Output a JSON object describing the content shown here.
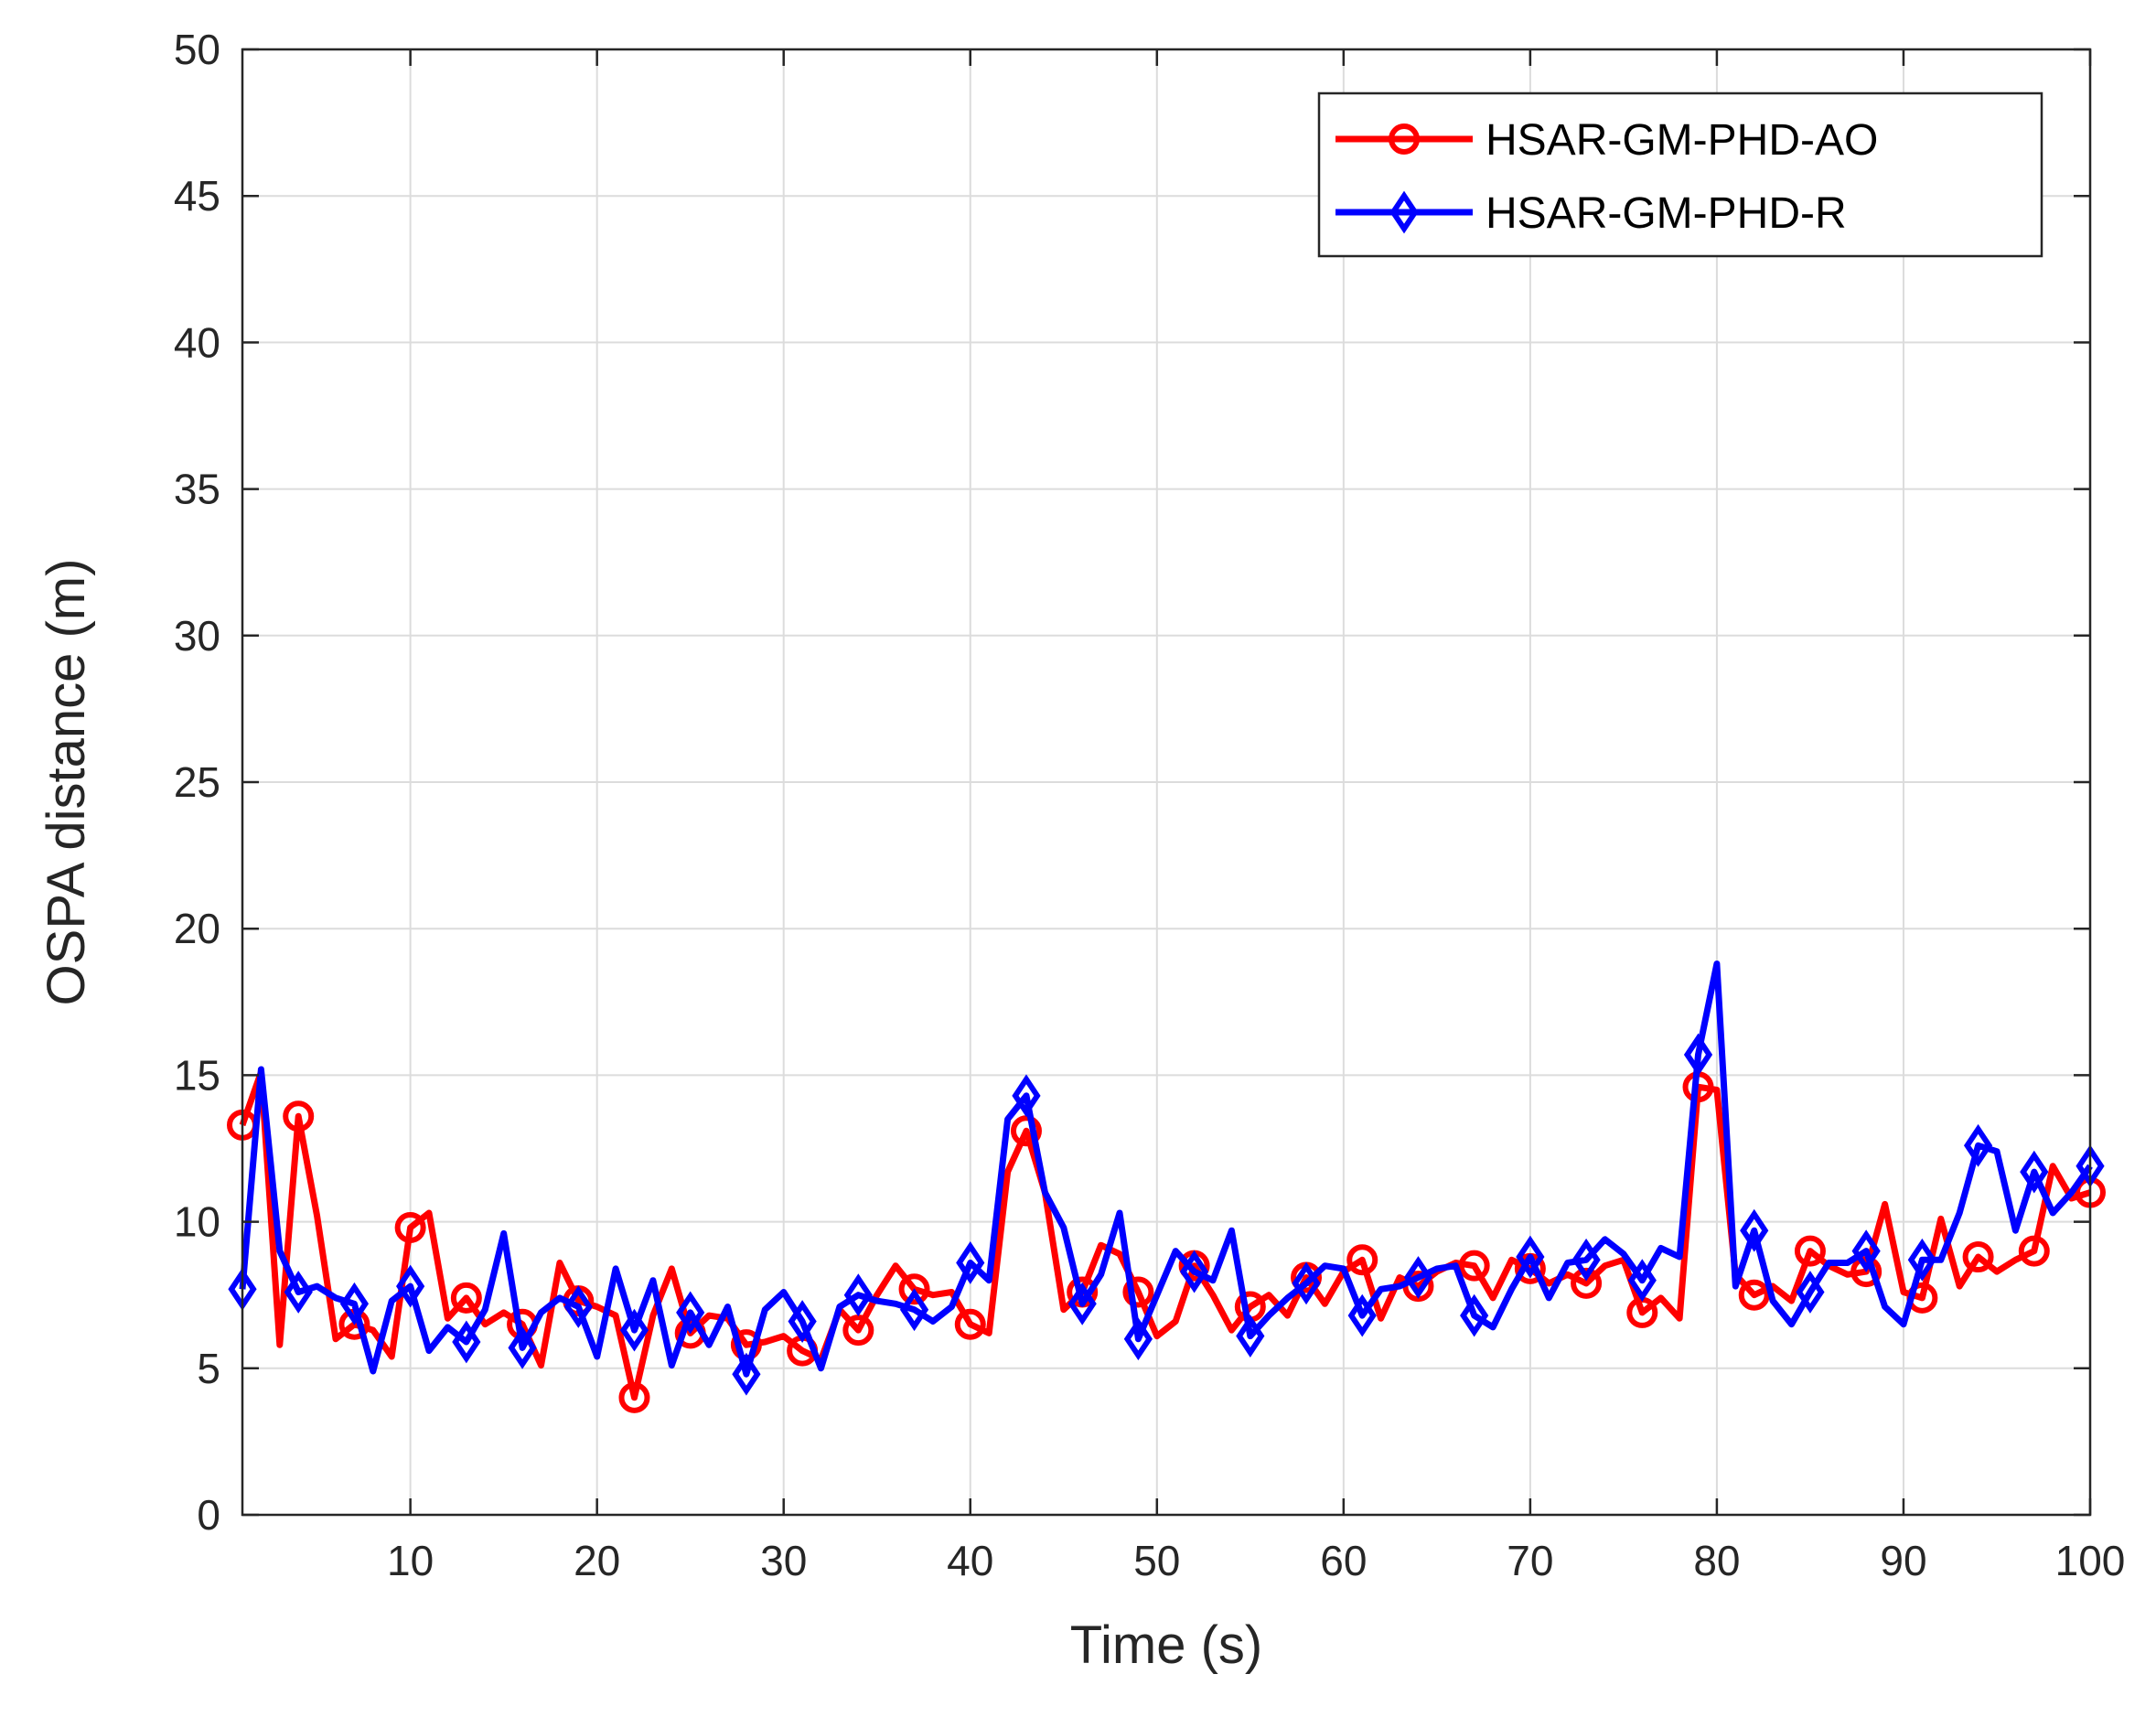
{
  "chart_data": {
    "type": "line",
    "title": "",
    "xlabel": "Time (s)",
    "ylabel": "OSPA distance (m)",
    "xlim": [
      1,
      100
    ],
    "ylim": [
      0,
      50
    ],
    "xticks": [
      10,
      20,
      30,
      40,
      50,
      60,
      70,
      80,
      90,
      100
    ],
    "yticks": [
      0,
      5,
      10,
      15,
      20,
      25,
      30,
      35,
      40,
      45,
      50
    ],
    "grid": true,
    "legend_position": "top-right",
    "marker_every": 3,
    "series": [
      {
        "name": "HSAR-GM-PHD-AO",
        "color": "#ff0000",
        "marker": "circle",
        "values": [
          13.3,
          15.1,
          5.8,
          13.6,
          10.2,
          6.0,
          6.5,
          6.3,
          5.4,
          9.8,
          10.3,
          6.7,
          7.4,
          6.5,
          6.9,
          6.5,
          5.1,
          8.6,
          7.3,
          7.1,
          6.8,
          4.0,
          6.8,
          8.4,
          6.2,
          6.8,
          6.7,
          5.8,
          5.9,
          6.1,
          5.6,
          5.3,
          7.0,
          6.3,
          7.5,
          8.5,
          7.7,
          7.5,
          7.6,
          6.5,
          6.2,
          11.7,
          13.1,
          11.0,
          7.0,
          7.6,
          9.2,
          8.9,
          7.6,
          6.1,
          6.6,
          8.5,
          7.5,
          6.3,
          7.1,
          7.5,
          6.8,
          8.1,
          7.2,
          8.3,
          8.7,
          6.7,
          8.1,
          7.8,
          8.3,
          8.6,
          8.5,
          7.4,
          8.7,
          8.4,
          7.9,
          8.2,
          7.9,
          8.5,
          8.7,
          6.9,
          7.4,
          6.7,
          14.6,
          14.5,
          8.2,
          7.5,
          7.8,
          7.3,
          9.0,
          8.5,
          8.2,
          8.3,
          10.6,
          7.6,
          7.4,
          10.1,
          7.8,
          8.8,
          8.3,
          8.7,
          9.0,
          11.9,
          10.8,
          11.0
        ]
      },
      {
        "name": "HSAR-GM-PHD-R",
        "color": "#0000ff",
        "marker": "diamond",
        "values": [
          7.7,
          15.2,
          9.0,
          7.6,
          7.8,
          7.4,
          7.2,
          4.9,
          7.3,
          7.8,
          5.6,
          6.4,
          5.9,
          7.0,
          9.6,
          5.7,
          6.9,
          7.4,
          7.1,
          5.4,
          8.4,
          6.3,
          8.0,
          5.1,
          6.9,
          5.8,
          7.1,
          4.8,
          7.0,
          7.6,
          6.6,
          5.0,
          7.1,
          7.5,
          7.3,
          7.2,
          7.0,
          6.6,
          7.1,
          8.6,
          8.0,
          13.5,
          14.3,
          11.0,
          9.8,
          7.2,
          8.2,
          10.3,
          6.0,
          7.5,
          9.0,
          8.3,
          8.0,
          9.7,
          6.1,
          6.8,
          7.4,
          7.9,
          8.5,
          8.4,
          6.8,
          7.7,
          7.8,
          8.1,
          8.4,
          8.5,
          6.8,
          6.4,
          7.7,
          8.8,
          7.4,
          8.6,
          8.7,
          9.4,
          8.9,
          8.0,
          9.1,
          8.8,
          15.7,
          18.8,
          7.8,
          9.7,
          7.3,
          6.5,
          7.6,
          8.6,
          8.6,
          9.0,
          7.1,
          6.5,
          8.7,
          8.7,
          10.3,
          12.6,
          12.4,
          9.7,
          11.7,
          10.3,
          11.0,
          11.9
        ]
      }
    ]
  }
}
